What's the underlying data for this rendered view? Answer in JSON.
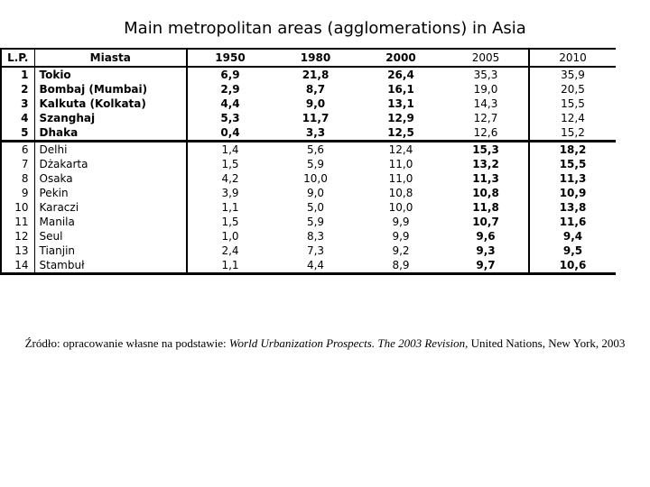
{
  "slide": {
    "title": "Main metropolitan areas (agglomerations) in Asia",
    "source": {
      "prefix": "Źródło: opracowanie własne na podstawie: ",
      "work_title": "World Urbanization Prospects. The 2003 Revision",
      "suffix": ", United Nations, New York, 2003"
    }
  },
  "table": {
    "columns": [
      {
        "key": "lp",
        "label": "L.P."
      },
      {
        "key": "city",
        "label": "Miasta"
      },
      {
        "key": "y1950",
        "label": "1950"
      },
      {
        "key": "y1980",
        "label": "1980"
      },
      {
        "key": "y2000",
        "label": "2000"
      },
      {
        "key": "y2005",
        "label": "2005"
      },
      {
        "key": "y2010",
        "label": "2010"
      }
    ],
    "bold_top_group_rows": 5,
    "rows": [
      {
        "lp": "1",
        "city": "Tokio",
        "values": [
          "6,9",
          "21,8",
          "26,4",
          "35,3",
          "35,9"
        ]
      },
      {
        "lp": "2",
        "city": "Bombaj (Mumbai)",
        "values": [
          "2,9",
          "8,7",
          "16,1",
          "19,0",
          "20,5"
        ]
      },
      {
        "lp": "3",
        "city": "Kalkuta (Kolkata)",
        "values": [
          "4,4",
          "9,0",
          "13,1",
          "14,3",
          "15,5"
        ]
      },
      {
        "lp": "4",
        "city": "Szanghaj",
        "values": [
          "5,3",
          "11,7",
          "12,9",
          "12,7",
          "12,4"
        ]
      },
      {
        "lp": "5",
        "city": "Dhaka",
        "values": [
          "0,4",
          "3,3",
          "12,5",
          "12,6",
          "15,2"
        ]
      },
      {
        "lp": "6",
        "city": "Delhi",
        "values": [
          "1,4",
          "5,6",
          "12,4",
          "15,3",
          "18,2"
        ]
      },
      {
        "lp": "7",
        "city": "Dżakarta",
        "values": [
          "1,5",
          "5,9",
          "11,0",
          "13,2",
          "15,5"
        ]
      },
      {
        "lp": "8",
        "city": "Osaka",
        "values": [
          "4,2",
          "10,0",
          "11,0",
          "11,3",
          "11,3"
        ]
      },
      {
        "lp": "9",
        "city": "Pekin",
        "values": [
          "3,9",
          "9,0",
          "10,8",
          "10,8",
          "10,9"
        ]
      },
      {
        "lp": "10",
        "city": "Karaczi",
        "values": [
          "1,1",
          "5,0",
          "10,0",
          "11,8",
          "13,8"
        ]
      },
      {
        "lp": "11",
        "city": "Manila",
        "values": [
          "1,5",
          "5,9",
          "9,9",
          "10,7",
          "11,6"
        ]
      },
      {
        "lp": "12",
        "city": "Seul",
        "values": [
          "1,0",
          "8,3",
          "9,9",
          "9,6",
          "9,4"
        ]
      },
      {
        "lp": "13",
        "city": "Tianjin",
        "values": [
          "2,4",
          "7,3",
          "9,2",
          "9,3",
          "9,5"
        ]
      },
      {
        "lp": "14",
        "city": "Stambuł",
        "values": [
          "1,1",
          "4,4",
          "8,9",
          "9,7",
          "10,6"
        ]
      }
    ]
  },
  "colors": {
    "background": "#ffffff",
    "text": "#000000",
    "border": "#000000"
  }
}
